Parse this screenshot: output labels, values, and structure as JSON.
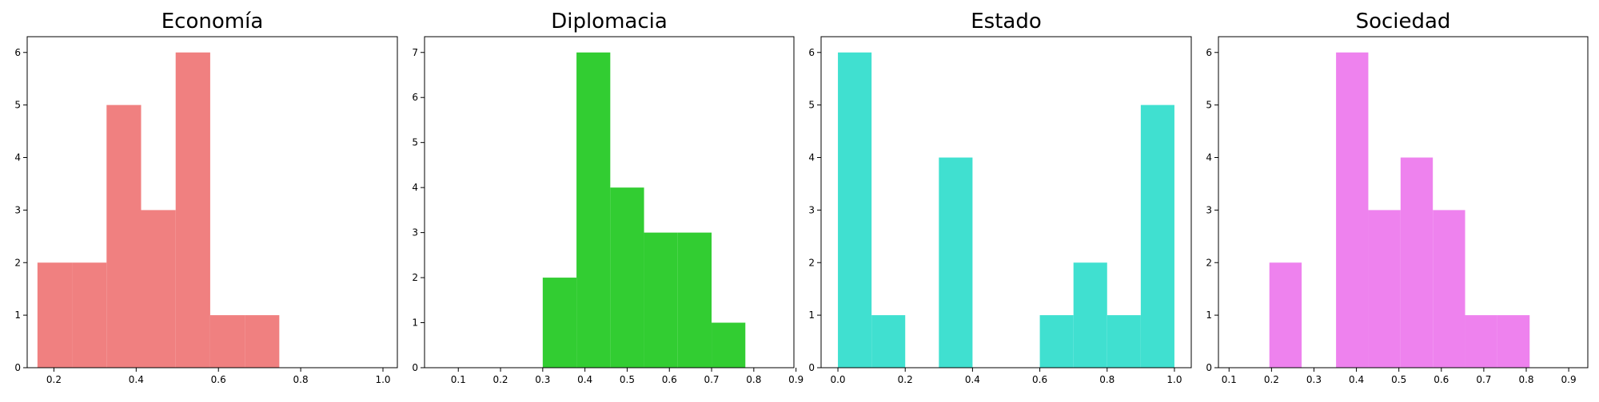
{
  "chart_data": [
    {
      "type": "histogram",
      "title": "Economía",
      "color": "#f08080",
      "xlim": [
        0.135,
        1.035
      ],
      "ylim": [
        0,
        6.3
      ],
      "xticks": [
        0.2,
        0.4,
        0.6,
        0.8,
        1.0
      ],
      "xtick_labels": [
        "0.2",
        "0.4",
        "0.6",
        "0.8",
        "1.0"
      ],
      "yticks": [
        0,
        1,
        2,
        3,
        4,
        5,
        6
      ],
      "ytick_labels": [
        "0",
        "1",
        "2",
        "3",
        "4",
        "5",
        "6"
      ],
      "bins": [
        {
          "x0": 0.16,
          "x1": 0.244,
          "count": 2
        },
        {
          "x0": 0.244,
          "x1": 0.328,
          "count": 2
        },
        {
          "x0": 0.328,
          "x1": 0.412,
          "count": 5
        },
        {
          "x0": 0.412,
          "x1": 0.496,
          "count": 3
        },
        {
          "x0": 0.496,
          "x1": 0.58,
          "count": 6
        },
        {
          "x0": 0.58,
          "x1": 0.664,
          "count": 1
        },
        {
          "x0": 0.664,
          "x1": 0.748,
          "count": 1
        }
      ]
    },
    {
      "type": "histogram",
      "title": "Diplomacia",
      "color": "#32cd32",
      "xlim": [
        0.02,
        0.895
      ],
      "ylim": [
        0,
        7.35
      ],
      "xticks": [
        0.1,
        0.2,
        0.3,
        0.4,
        0.5,
        0.6,
        0.7,
        0.8,
        0.9
      ],
      "xtick_labels": [
        "0.1",
        "0.2",
        "0.3",
        "0.4",
        "0.5",
        "0.6",
        "0.7",
        "0.8",
        "0.9"
      ],
      "yticks": [
        0,
        1,
        2,
        3,
        4,
        5,
        6,
        7
      ],
      "ytick_labels": [
        "0",
        "1",
        "2",
        "3",
        "4",
        "5",
        "6",
        "7"
      ],
      "bins": [
        {
          "x0": 0.3,
          "x1": 0.38,
          "count": 2
        },
        {
          "x0": 0.38,
          "x1": 0.46,
          "count": 7
        },
        {
          "x0": 0.46,
          "x1": 0.54,
          "count": 4
        },
        {
          "x0": 0.54,
          "x1": 0.62,
          "count": 3
        },
        {
          "x0": 0.62,
          "x1": 0.7,
          "count": 3
        },
        {
          "x0": 0.7,
          "x1": 0.78,
          "count": 1
        }
      ]
    },
    {
      "type": "histogram",
      "title": "Estado",
      "color": "#40e0d0",
      "xlim": [
        -0.05,
        1.05
      ],
      "ylim": [
        0,
        6.3
      ],
      "xticks": [
        0.0,
        0.2,
        0.4,
        0.6,
        0.8,
        1.0
      ],
      "xtick_labels": [
        "0.0",
        "0.2",
        "0.4",
        "0.6",
        "0.8",
        "1.0"
      ],
      "yticks": [
        0,
        1,
        2,
        3,
        4,
        5,
        6
      ],
      "ytick_labels": [
        "0",
        "1",
        "2",
        "3",
        "4",
        "5",
        "6"
      ],
      "bins": [
        {
          "x0": 0.0,
          "x1": 0.1,
          "count": 6
        },
        {
          "x0": 0.1,
          "x1": 0.2,
          "count": 1
        },
        {
          "x0": 0.3,
          "x1": 0.4,
          "count": 4
        },
        {
          "x0": 0.6,
          "x1": 0.7,
          "count": 1
        },
        {
          "x0": 0.7,
          "x1": 0.8,
          "count": 2
        },
        {
          "x0": 0.8,
          "x1": 0.9,
          "count": 1
        },
        {
          "x0": 0.9,
          "x1": 1.0,
          "count": 5
        }
      ]
    },
    {
      "type": "histogram",
      "title": "Sociedad",
      "color": "#ee82ee",
      "xlim": [
        0.075,
        0.945
      ],
      "ylim": [
        0,
        6.3
      ],
      "xticks": [
        0.1,
        0.2,
        0.3,
        0.4,
        0.5,
        0.6,
        0.7,
        0.8,
        0.9
      ],
      "xtick_labels": [
        "0.1",
        "0.2",
        "0.3",
        "0.4",
        "0.5",
        "0.6",
        "0.7",
        "0.8",
        "0.9"
      ],
      "yticks": [
        0,
        1,
        2,
        3,
        4,
        5,
        6
      ],
      "ytick_labels": [
        "0",
        "1",
        "2",
        "3",
        "4",
        "5",
        "6"
      ],
      "bins": [
        {
          "x0": 0.195,
          "x1": 0.271,
          "count": 2
        },
        {
          "x0": 0.352,
          "x1": 0.428,
          "count": 6
        },
        {
          "x0": 0.428,
          "x1": 0.504,
          "count": 3
        },
        {
          "x0": 0.504,
          "x1": 0.58,
          "count": 4
        },
        {
          "x0": 0.58,
          "x1": 0.656,
          "count": 3
        },
        {
          "x0": 0.656,
          "x1": 0.732,
          "count": 1
        },
        {
          "x0": 0.732,
          "x1": 0.808,
          "count": 1
        }
      ]
    }
  ]
}
